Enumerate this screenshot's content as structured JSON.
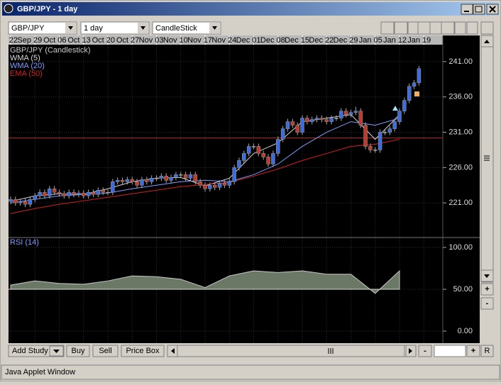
{
  "window": {
    "title": "GBP/JPY - 1 day"
  },
  "toolbar": {
    "symbol": "GBP/JPY",
    "interval": "1 day",
    "chart_type": "CandleStick"
  },
  "chart": {
    "dates": [
      "22",
      "Sep 29",
      "Oct 06",
      "Oct 13",
      "Oct 20",
      "Oct 27",
      "Nov 03",
      "Nov 10",
      "Nov 17",
      "Nov 24",
      "Dec 01",
      "Dec 08",
      "Dec 15",
      "Dec 22",
      "Dec 29",
      "Jan 05",
      "Jan 12",
      "Jan 19"
    ],
    "price_panel": {
      "legend_title": "GBP/JPY (Candlestick)",
      "ylim": [
        216.3,
        243.5
      ],
      "yticks": [
        {
          "value": 221,
          "label": "221.00"
        },
        {
          "value": 226,
          "label": "226.00"
        },
        {
          "value": 231,
          "label": "231.00"
        },
        {
          "value": 236,
          "label": "236.00"
        },
        {
          "value": 241,
          "label": "241.00"
        }
      ],
      "up_color": "#3d6be0",
      "down_color": "#c0392b",
      "candles": [
        [
          221.2,
          221.9,
          220.8,
          221.5
        ],
        [
          221.5,
          221.9,
          220.6,
          221
        ],
        [
          221,
          221.6,
          220.6,
          221.2
        ],
        [
          221.2,
          221.6,
          220.4,
          220.8
        ],
        [
          220.8,
          221.9,
          220.4,
          221.5
        ],
        [
          221.5,
          222.4,
          221.1,
          222
        ],
        [
          222,
          222.9,
          221.6,
          222.5
        ],
        [
          222.5,
          222.9,
          221.6,
          222
        ],
        [
          222,
          223.4,
          221.6,
          223
        ],
        [
          223,
          223.4,
          222.1,
          222.5
        ],
        [
          222.5,
          222.9,
          221.9,
          222.3
        ],
        [
          222.3,
          222.7,
          221.6,
          222
        ],
        [
          222,
          222.9,
          221.6,
          222.5
        ],
        [
          222.5,
          222.9,
          221.8,
          222.2
        ],
        [
          222.2,
          222.8,
          221.8,
          222.4
        ],
        [
          222.4,
          222.8,
          221.6,
          222
        ],
        [
          222,
          222.9,
          221.6,
          222.5
        ],
        [
          222.5,
          222.9,
          221.8,
          222.2
        ],
        [
          222.2,
          223.2,
          221.8,
          222.8
        ],
        [
          222.8,
          223.2,
          222.1,
          222.5
        ],
        [
          222.5,
          222.9,
          222.1,
          222.5
        ],
        [
          222.5,
          224.4,
          222.1,
          224
        ],
        [
          224,
          224.6,
          223.6,
          224.2
        ],
        [
          224.2,
          224.6,
          223.6,
          224
        ],
        [
          224,
          224.7,
          223.6,
          224.3
        ],
        [
          224.3,
          224.7,
          223.6,
          224
        ],
        [
          224,
          224.4,
          223.1,
          223.5
        ],
        [
          223.5,
          224.7,
          223.1,
          224.3
        ],
        [
          224.3,
          224.7,
          223.6,
          224
        ],
        [
          224,
          224.9,
          223.6,
          224.5
        ],
        [
          224.5,
          224.9,
          224.1,
          224.5
        ],
        [
          224.5,
          225.2,
          224.1,
          224.8
        ],
        [
          224.8,
          225.2,
          223.8,
          224.2
        ],
        [
          224.2,
          225,
          223.8,
          224.6
        ],
        [
          224.6,
          225.4,
          224.2,
          225
        ],
        [
          225,
          225.4,
          224.6,
          225
        ],
        [
          225,
          225.4,
          224.1,
          224.5
        ],
        [
          224.5,
          225.4,
          224.1,
          225
        ],
        [
          225,
          225.4,
          223.6,
          224
        ],
        [
          224,
          224.4,
          223.1,
          223.5
        ],
        [
          223.5,
          223.9,
          222.6,
          223
        ],
        [
          223,
          223.9,
          222.6,
          223.5
        ],
        [
          223.5,
          223.9,
          222.8,
          223.2
        ],
        [
          223.2,
          224.2,
          222.8,
          223.8
        ],
        [
          223.8,
          224.2,
          223.1,
          223.5
        ],
        [
          223.5,
          224.4,
          223.1,
          224
        ],
        [
          224,
          226.4,
          223.6,
          226
        ],
        [
          226,
          227.4,
          225.6,
          227
        ],
        [
          227,
          228.4,
          226.6,
          228
        ],
        [
          228,
          229.4,
          227.6,
          229
        ],
        [
          229,
          229.4,
          228.6,
          229
        ],
        [
          229,
          229.4,
          227.6,
          228
        ],
        [
          228,
          228.4,
          227.1,
          227.5
        ],
        [
          227.5,
          227.9,
          226.1,
          226.5
        ],
        [
          226.5,
          228.4,
          226.1,
          228
        ],
        [
          228,
          230.4,
          227.6,
          230
        ],
        [
          230,
          231.9,
          229.6,
          231.5
        ],
        [
          231.5,
          232.9,
          231.1,
          232.5
        ],
        [
          232.5,
          232.9,
          231.6,
          232
        ],
        [
          232,
          232.4,
          230.6,
          231
        ],
        [
          231,
          233.4,
          230.6,
          233
        ],
        [
          233,
          233.4,
          232.1,
          232.5
        ],
        [
          232.5,
          233.2,
          232.1,
          232.8
        ],
        [
          232.8,
          233.4,
          232.4,
          233
        ],
        [
          233,
          233.4,
          232.4,
          232.8
        ],
        [
          232.8,
          233.2,
          232.1,
          232.5
        ],
        [
          232.5,
          233.4,
          232.1,
          233
        ],
        [
          233,
          233.4,
          232.6,
          233
        ],
        [
          233,
          234.4,
          232.6,
          234
        ],
        [
          234,
          234.4,
          233.1,
          233.5
        ],
        [
          233.5,
          234.2,
          233.1,
          233.8
        ],
        [
          233.8,
          234.6,
          233.4,
          234
        ],
        [
          234,
          234.4,
          231.6,
          232
        ],
        [
          232,
          232.4,
          228.6,
          229
        ],
        [
          229,
          229.4,
          228.1,
          228.5
        ],
        [
          228.5,
          228.9,
          228.1,
          228.5
        ],
        [
          228.5,
          231.4,
          228.1,
          231
        ],
        [
          231,
          231.4,
          230.6,
          231
        ],
        [
          231,
          231.9,
          230.6,
          231.5
        ],
        [
          231.5,
          232.9,
          231.1,
          232.5
        ],
        [
          232.5,
          234.4,
          232.1,
          234
        ],
        [
          234,
          235.9,
          233.6,
          235.5
        ],
        [
          235.5,
          237.9,
          235.1,
          237.5
        ],
        [
          237.5,
          238.4,
          237.1,
          238
        ],
        [
          238,
          240.4,
          237.6,
          240
        ]
      ],
      "series": [
        {
          "name": "WMA (5)",
          "color": "#d8d8d8",
          "values": [
            221.2,
            222,
            222.3,
            222.2,
            223,
            224,
            224.5,
            224.6,
            223.4,
            224.5,
            228,
            229.5,
            232.5,
            233,
            233.5,
            230,
            233.5,
            null
          ]
        },
        {
          "name": "WMA (20)",
          "color": "#7f9cff",
          "values": [
            221,
            221.5,
            222,
            222.2,
            222.4,
            223,
            223.5,
            224,
            224.2,
            224,
            225,
            226.5,
            229,
            231,
            232.5,
            232,
            233,
            null
          ]
        },
        {
          "name": "EMA (50)",
          "color": "#d42020",
          "values": [
            219.5,
            220.2,
            220.8,
            221.3,
            221.8,
            222.3,
            222.8,
            223.3,
            223.6,
            223.9,
            224.8,
            225.8,
            227,
            228,
            229,
            229.3,
            230,
            null
          ]
        }
      ],
      "level_line": 230.2
    },
    "rsi_panel": {
      "name": "RSI (14)",
      "ylim": [
        -14.4,
        109.3
      ],
      "yticks": [
        {
          "value": 0,
          "label": "0.00"
        },
        {
          "value": 50,
          "label": "50.00"
        },
        {
          "value": 100,
          "label": "100.00"
        }
      ],
      "fill_baseline": 50,
      "color": "#6b7866",
      "values": [
        55,
        60,
        57,
        56,
        60,
        66,
        65,
        62,
        52,
        66,
        72,
        70,
        72,
        68,
        68,
        45,
        72,
        null
      ]
    }
  },
  "buttons": [
    "Add Study",
    "Buy",
    "Sell",
    "Price Box"
  ],
  "scale_buttons": [
    "+",
    "-",
    "R"
  ],
  "status": "Java Applet Window"
}
